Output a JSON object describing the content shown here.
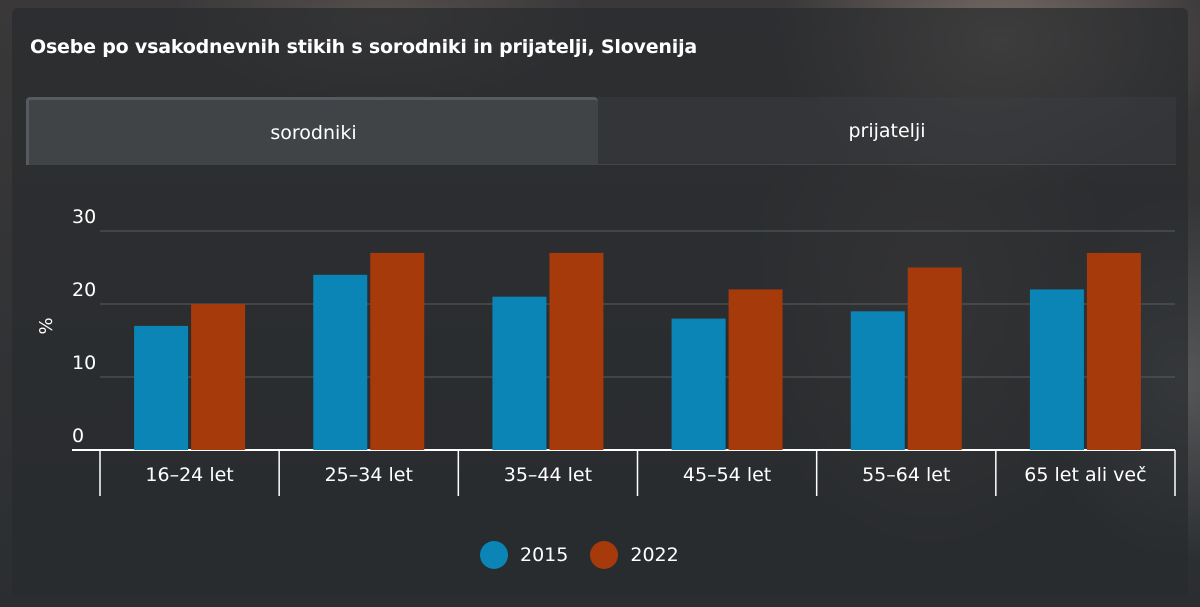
{
  "title": "Osebe po vsakodnevnih stikih s sorodniki in prijatelji, Slovenija",
  "tabs": [
    {
      "label": "sorodniki",
      "active": true
    },
    {
      "label": "prijatelji",
      "active": false
    }
  ],
  "colors": {
    "series_2015": "#0a85b5",
    "series_2022": "#a63a0a",
    "grid": "#5a5d60",
    "axis": "#ffffff",
    "text": "#ffffff"
  },
  "chart_data": {
    "type": "bar",
    "ylabel": "%",
    "ylim": [
      0,
      30
    ],
    "yticks": [
      0,
      10,
      20,
      30
    ],
    "grid": true,
    "legend_position": "bottom",
    "categories": [
      "16–24 let",
      "25–34 let",
      "35–44 let",
      "45–54 let",
      "55–64 let",
      "65 let ali več"
    ],
    "series": [
      {
        "name": "2015",
        "values": [
          17,
          24,
          21,
          18,
          19,
          22
        ]
      },
      {
        "name": "2022",
        "values": [
          20,
          27,
          27,
          22,
          25,
          27
        ]
      }
    ]
  }
}
